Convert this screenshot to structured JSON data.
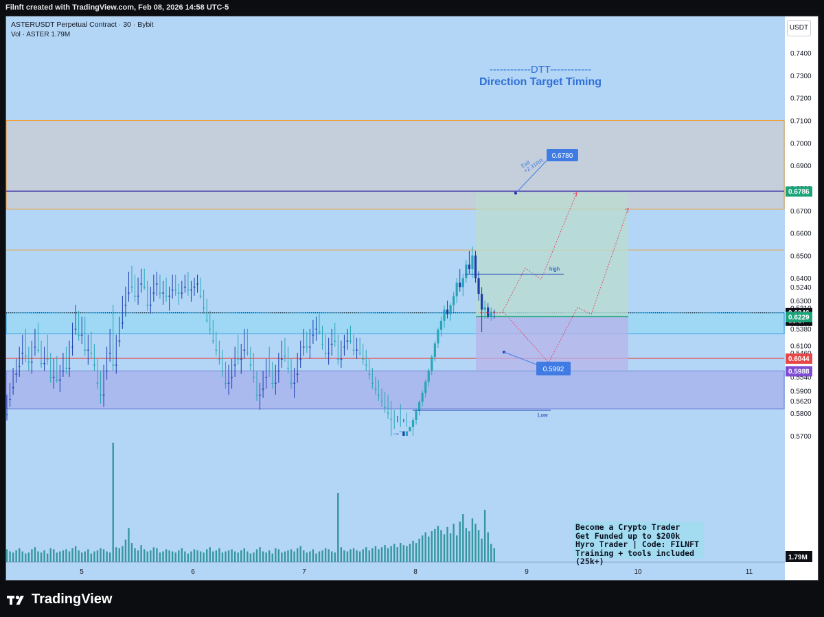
{
  "header": {
    "credit": "Filnft created with TradingView.com, Feb 08, 2026 14:58 UTC-5"
  },
  "legend": {
    "symbol": "ASTERUSDT Perpetual Contract · 30 · Bybit",
    "volume": "Vol · ASTER  1.79M"
  },
  "currency_button": "USDT",
  "footer": {
    "brand": "TradingView"
  },
  "promo": {
    "lines": [
      "Become a Crypto Trader",
      "Get Funded up to $200k",
      "Hyro Trader | Code: FILNFT",
      "Training + tools included (25k+)"
    ]
  },
  "colors": {
    "background": "#b3d6f6",
    "candle": "#1a3cae",
    "volume": "#1f8b8f",
    "orange": "#f49b2a",
    "indigo": "#2c1f9c",
    "red": "#e64646",
    "green_price": "#1ca37a",
    "purple": "#7e4bd3",
    "blue_label": "#3f7be3"
  },
  "chart_data": {
    "type": "candlestick",
    "symbol": "ASTERUSDT",
    "timeframe": "30",
    "exchange": "Bybit",
    "x_tick_labels": [
      "5",
      "6",
      "7",
      "8",
      "9",
      "10",
      "11"
    ],
    "y_tick_labels": [
      "0.7400",
      "0.7300",
      "0.7200",
      "0.7100",
      "0.7000",
      "0.6900",
      "0.6800",
      "0.6700",
      "0.6600",
      "0.6500",
      "0.6400",
      "0.6300",
      "0.6200",
      "0.6100",
      "0.6000",
      "0.5900",
      "0.5800",
      "0.5700",
      "0.5620",
      "0.5540",
      "0.5460",
      "0.5380",
      "0.5310",
      "0.5240"
    ],
    "y_axis_ticks": [
      0.74,
      0.73,
      0.72,
      0.71,
      0.7,
      0.69,
      0.68,
      0.67,
      0.66,
      0.65,
      0.64,
      0.63,
      0.62,
      0.61,
      0.6,
      0.59,
      0.58,
      0.57,
      0.562,
      0.554,
      0.546,
      0.538,
      0.531,
      0.524
    ],
    "price_labels": [
      {
        "text": "0.6786",
        "value": 0.6786,
        "color": "#1ca37a"
      },
      {
        "text": "0.6246",
        "sub": "01:37",
        "value": 0.6246,
        "color": "#0d0f14"
      },
      {
        "text": "0.6229",
        "value": 0.6229,
        "color": "#1ca37a"
      },
      {
        "text": "0.6044",
        "value": 0.6044,
        "color": "#e64646"
      },
      {
        "text": "0.5988",
        "value": 0.5988,
        "color": "#7e4bd3"
      },
      {
        "text": "1.79M",
        "color": "#0d0f14"
      }
    ],
    "zones": [
      {
        "name": "supply-zone",
        "top": 0.71,
        "bottom": 0.6706,
        "color": "#c5cfdb",
        "border": "#f49b2a"
      },
      {
        "name": "fvg-zone",
        "top": 0.6246,
        "bottom": 0.6153,
        "color": "#9fd8f5",
        "border": "#2f9fd8"
      },
      {
        "name": "demand-zone",
        "top": 0.5988,
        "bottom": 0.5647,
        "color": "#aab9ee",
        "border": "#7080d6"
      }
    ],
    "levels": [
      {
        "name": "exit-line",
        "value": 0.6786,
        "color": "#2c1f9c"
      },
      {
        "name": "orange-level",
        "value": 0.6525,
        "color": "#f49b2a"
      },
      {
        "name": "red-level",
        "value": 0.6044,
        "color": "#e64646"
      }
    ],
    "position": {
      "entry": 0.6229,
      "target": 0.678,
      "stop": 0.5992,
      "target_label": "0.6780",
      "stop_label": "0.5992",
      "rr_label": "Exit",
      "rr_sub": "+2.31RR"
    },
    "annotations": {
      "high": "high",
      "low": "Low",
      "high_value": 0.6418,
      "low_value": 0.5651
    },
    "title_text": {
      "line1": "------------DTT------------",
      "line2": "Direction Target Timing"
    },
    "day_boundaries": [
      0,
      36,
      72,
      108,
      144,
      180
    ],
    "candles_ohlc": [
      [
        0.5665,
        0.5685,
        0.56,
        0.5615
      ],
      [
        0.5615,
        0.564,
        0.556,
        0.5575
      ],
      [
        0.5575,
        0.56,
        0.551,
        0.553
      ],
      [
        0.553,
        0.556,
        0.548,
        0.5505
      ],
      [
        0.5505,
        0.554,
        0.544,
        0.546
      ],
      [
        0.546,
        0.55,
        0.54,
        0.5425
      ],
      [
        0.5425,
        0.549,
        0.538,
        0.547
      ],
      [
        0.547,
        0.552,
        0.544,
        0.549
      ],
      [
        0.549,
        0.553,
        0.542,
        0.544
      ],
      [
        0.544,
        0.547,
        0.538,
        0.54
      ],
      [
        0.54,
        0.546,
        0.536,
        0.545
      ],
      [
        0.545,
        0.551,
        0.542,
        0.5495
      ],
      [
        0.5495,
        0.552,
        0.544,
        0.546
      ],
      [
        0.546,
        0.55,
        0.54,
        0.548
      ],
      [
        0.548,
        0.556,
        0.546,
        0.554
      ],
      [
        0.554,
        0.558,
        0.548,
        0.55
      ],
      [
        0.55,
        0.556,
        0.547,
        0.555
      ],
      [
        0.555,
        0.559,
        0.55,
        0.552
      ],
      [
        0.552,
        0.554,
        0.546,
        0.548
      ],
      [
        0.548,
        0.553,
        0.544,
        0.551
      ],
      [
        0.551,
        0.554,
        0.542,
        0.544
      ],
      [
        0.544,
        0.547,
        0.536,
        0.538
      ],
      [
        0.538,
        0.54,
        0.53,
        0.534
      ],
      [
        0.534,
        0.542,
        0.532,
        0.54
      ],
      [
        0.54,
        0.543,
        0.534,
        0.536
      ],
      [
        0.536,
        0.547,
        0.534,
        0.545
      ],
      [
        0.545,
        0.55,
        0.54,
        0.542
      ],
      [
        0.542,
        0.548,
        0.539,
        0.546
      ],
      [
        0.546,
        0.552,
        0.543,
        0.55
      ],
      [
        0.55,
        0.558,
        0.548,
        0.556
      ],
      [
        0.556,
        0.563,
        0.552,
        0.56
      ],
      [
        0.56,
        0.564,
        0.55,
        0.552
      ],
      [
        0.552,
        0.555,
        0.544,
        0.546
      ],
      [
        0.546,
        0.549,
        0.538,
        0.54
      ],
      [
        0.54,
        0.552,
        0.53,
        0.55
      ],
      [
        0.55,
        0.553,
        0.54,
        0.542
      ],
      [
        0.542,
        0.544,
        0.534,
        0.536
      ],
      [
        0.536,
        0.538,
        0.527,
        0.53
      ],
      [
        0.53,
        0.534,
        0.524,
        0.526
      ],
      [
        0.526,
        0.529,
        0.519,
        0.522
      ],
      [
        0.522,
        0.526,
        0.517,
        0.524
      ],
      [
        0.524,
        0.529,
        0.52,
        0.527
      ],
      [
        0.527,
        0.53,
        0.521,
        0.523
      ],
      [
        0.523,
        0.526,
        0.518,
        0.52
      ],
      [
        0.52,
        0.525,
        0.518,
        0.524
      ],
      [
        0.524,
        0.532,
        0.522,
        0.53
      ],
      [
        0.53,
        0.533,
        0.524,
        0.526
      ],
      [
        0.526,
        0.529,
        0.52,
        0.523
      ],
      [
        0.523,
        0.527,
        0.519,
        0.521
      ],
      [
        0.521,
        0.528,
        0.52,
        0.526
      ],
      [
        0.526,
        0.53,
        0.522,
        0.524
      ],
      [
        0.524,
        0.529,
        0.521,
        0.527
      ],
      [
        0.527,
        0.532,
        0.524,
        0.525
      ],
      [
        0.525,
        0.528,
        0.52,
        0.522
      ],
      [
        0.522,
        0.527,
        0.52,
        0.525
      ],
      [
        0.525,
        0.53,
        0.523,
        0.526
      ],
      [
        0.526,
        0.528,
        0.522,
        0.524
      ],
      [
        0.524,
        0.526,
        0.52,
        0.523
      ],
      [
        0.523,
        0.527,
        0.519,
        0.525
      ],
      [
        0.525,
        0.529,
        0.522,
        0.524
      ],
      [
        0.524,
        0.527,
        0.521,
        0.523
      ],
      [
        0.523,
        0.526,
        0.52,
        0.522
      ],
      [
        0.522,
        0.528,
        0.521,
        0.527
      ],
      [
        0.527,
        0.533,
        0.525,
        0.531
      ],
      [
        0.531,
        0.536,
        0.528,
        0.535
      ],
      [
        0.535,
        0.54,
        0.532,
        0.538
      ],
      [
        0.538,
        0.543,
        0.535,
        0.542
      ],
      [
        0.542,
        0.547,
        0.539,
        0.545
      ],
      [
        0.545,
        0.55,
        0.542,
        0.548
      ],
      [
        0.548,
        0.554,
        0.545,
        0.552
      ],
      [
        0.552,
        0.558,
        0.549,
        0.556
      ],
      [
        0.556,
        0.56,
        0.55,
        0.554
      ],
      [
        0.554,
        0.558,
        0.548,
        0.55
      ],
      [
        0.55,
        0.554,
        0.544,
        0.546
      ],
      [
        0.546,
        0.55,
        0.54,
        0.548
      ],
      [
        0.548,
        0.553,
        0.543,
        0.545
      ],
      [
        0.545,
        0.548,
        0.538,
        0.54
      ],
      [
        0.54,
        0.547,
        0.538,
        0.546
      ],
      [
        0.546,
        0.552,
        0.544,
        0.55
      ],
      [
        0.55,
        0.556,
        0.546,
        0.554
      ],
      [
        0.554,
        0.562,
        0.552,
        0.56
      ],
      [
        0.56,
        0.565,
        0.556,
        0.558
      ],
      [
        0.558,
        0.561,
        0.552,
        0.554
      ],
      [
        0.554,
        0.558,
        0.548,
        0.55
      ],
      [
        0.55,
        0.554,
        0.544,
        0.552
      ],
      [
        0.552,
        0.558,
        0.549,
        0.556
      ],
      [
        0.556,
        0.56,
        0.55,
        0.552
      ],
      [
        0.552,
        0.556,
        0.546,
        0.548
      ],
      [
        0.548,
        0.551,
        0.542,
        0.544
      ],
      [
        0.544,
        0.549,
        0.541,
        0.547
      ],
      [
        0.547,
        0.553,
        0.544,
        0.551
      ],
      [
        0.551,
        0.558,
        0.548,
        0.556
      ],
      [
        0.556,
        0.561,
        0.551,
        0.553
      ],
      [
        0.553,
        0.556,
        0.546,
        0.548
      ],
      [
        0.548,
        0.551,
        0.542,
        0.544
      ],
      [
        0.544,
        0.547,
        0.538,
        0.542
      ],
      [
        0.542,
        0.546,
        0.539,
        0.544
      ],
      [
        0.544,
        0.548,
        0.538,
        0.54
      ],
      [
        0.54,
        0.543,
        0.535,
        0.538
      ],
      [
        0.538,
        0.542,
        0.534,
        0.536
      ],
      [
        0.536,
        0.54,
        0.533,
        0.539
      ],
      [
        0.539,
        0.545,
        0.537,
        0.543
      ],
      [
        0.543,
        0.548,
        0.54,
        0.546
      ],
      [
        0.546,
        0.55,
        0.541,
        0.543
      ],
      [
        0.543,
        0.547,
        0.538,
        0.54
      ],
      [
        0.54,
        0.544,
        0.536,
        0.542
      ],
      [
        0.542,
        0.55,
        0.54,
        0.548
      ],
      [
        0.548,
        0.551,
        0.542,
        0.544
      ],
      [
        0.544,
        0.547,
        0.54,
        0.542
      ],
      [
        0.542,
        0.545,
        0.538,
        0.54
      ],
      [
        0.54,
        0.543,
        0.537,
        0.542
      ],
      [
        0.542,
        0.547,
        0.54,
        0.545
      ],
      [
        0.545,
        0.548,
        0.541,
        0.543
      ],
      [
        0.543,
        0.547,
        0.541,
        0.546
      ],
      [
        0.546,
        0.55,
        0.543,
        0.548
      ],
      [
        0.548,
        0.552,
        0.545,
        0.55
      ],
      [
        0.55,
        0.555,
        0.548,
        0.553
      ],
      [
        0.553,
        0.558,
        0.551,
        0.556
      ],
      [
        0.556,
        0.56,
        0.554,
        0.558
      ],
      [
        0.558,
        0.562,
        0.555,
        0.56
      ],
      [
        0.56,
        0.564,
        0.558,
        0.562
      ],
      [
        0.562,
        0.566,
        0.559,
        0.564
      ],
      [
        0.564,
        0.568,
        0.56,
        0.566
      ],
      [
        0.566,
        0.57,
        0.562,
        0.568
      ],
      [
        0.568,
        0.573,
        0.565,
        0.571
      ],
      [
        0.571,
        0.576,
        0.567,
        0.569
      ],
      [
        0.569,
        0.574,
        0.563,
        0.572
      ],
      [
        0.572,
        0.576,
        0.568,
        0.57
      ],
      [
        0.57,
        0.574,
        0.566,
        0.572
      ],
      [
        0.572,
        0.576,
        0.569,
        0.574
      ],
      [
        0.574,
        0.578,
        0.57,
        0.577
      ],
      [
        0.577,
        0.582,
        0.575,
        0.581
      ],
      [
        0.581,
        0.586,
        0.579,
        0.585
      ],
      [
        0.585,
        0.59,
        0.583,
        0.589
      ],
      [
        0.589,
        0.595,
        0.587,
        0.594
      ],
      [
        0.594,
        0.6,
        0.592,
        0.599
      ],
      [
        0.599,
        0.606,
        0.597,
        0.605
      ],
      [
        0.605,
        0.612,
        0.603,
        0.611
      ],
      [
        0.611,
        0.618,
        0.609,
        0.617
      ],
      [
        0.617,
        0.623,
        0.614,
        0.621
      ],
      [
        0.621,
        0.628,
        0.618,
        0.626
      ],
      [
        0.626,
        0.63,
        0.622,
        0.624
      ],
      [
        0.624,
        0.629,
        0.621,
        0.628
      ],
      [
        0.628,
        0.634,
        0.625,
        0.632
      ],
      [
        0.632,
        0.64,
        0.629,
        0.638
      ],
      [
        0.638,
        0.644,
        0.634,
        0.636
      ],
      [
        0.636,
        0.642,
        0.632,
        0.64
      ],
      [
        0.64,
        0.648,
        0.638,
        0.646
      ],
      [
        0.646,
        0.652,
        0.642,
        0.644
      ],
      [
        0.644,
        0.654,
        0.64,
        0.65
      ],
      [
        0.65,
        0.652,
        0.638,
        0.64
      ],
      [
        0.64,
        0.643,
        0.63,
        0.633
      ],
      [
        0.633,
        0.636,
        0.616,
        0.626
      ],
      [
        0.626,
        0.63,
        0.622,
        0.627
      ],
      [
        0.627,
        0.629,
        0.622,
        0.623
      ],
      [
        0.623,
        0.627,
        0.621,
        0.625
      ],
      [
        0.625,
        0.626,
        0.622,
        0.6246
      ]
    ],
    "volumes": [
      1.2,
      1.0,
      0.9,
      1.1,
      1.3,
      1.0,
      0.8,
      0.9,
      1.2,
      1.4,
      1.0,
      0.9,
      1.1,
      0.8,
      1.3,
      1.2,
      0.9,
      1.0,
      1.1,
      1.2,
      1.0,
      1.3,
      1.5,
      1.1,
      0.9,
      1.0,
      1.2,
      0.8,
      1.0,
      1.1,
      1.3,
      1.2,
      1.0,
      0.9,
      11.2,
      1.4,
      1.3,
      1.5,
      2.1,
      3.2,
      1.8,
      1.3,
      1.1,
      1.6,
      1.2,
      1.0,
      1.1,
      1.4,
      1.3,
      0.9,
      1.0,
      1.2,
      1.1,
      1.0,
      0.9,
      1.1,
      1.3,
      1.0,
      0.8,
      1.0,
      1.2,
      1.1,
      1.0,
      0.9,
      1.2,
      1.4,
      1.0,
      1.1,
      1.3,
      0.9,
      1.0,
      1.1,
      1.2,
      1.0,
      0.9,
      1.1,
      1.3,
      1.0,
      0.8,
      0.9,
      1.2,
      1.4,
      1.0,
      0.9,
      1.1,
      0.8,
      1.3,
      1.2,
      0.9,
      1.0,
      1.1,
      1.2,
      1.0,
      1.3,
      1.5,
      1.1,
      0.9,
      1.0,
      1.2,
      0.8,
      1.0,
      1.1,
      1.3,
      1.2,
      1.0,
      0.9,
      6.5,
      1.4,
      1.1,
      1.0,
      1.2,
      1.3,
      1.1,
      1.0,
      1.2,
      1.4,
      1.1,
      1.3,
      1.5,
      1.2,
      1.4,
      1.6,
      1.3,
      1.5,
      1.7,
      1.4,
      1.8,
      1.6,
      1.5,
      1.7,
      2.0,
      1.8,
      2.2,
      2.5,
      2.8,
      2.4,
      2.9,
      3.1,
      3.4,
      3.0,
      2.6,
      3.3,
      2.7,
      3.6,
      2.5,
      3.8,
      4.5,
      3.2,
      2.9,
      4.1,
      3.6,
      3.0,
      2.2,
      4.9,
      2.8,
      1.7,
      1.3
    ]
  }
}
